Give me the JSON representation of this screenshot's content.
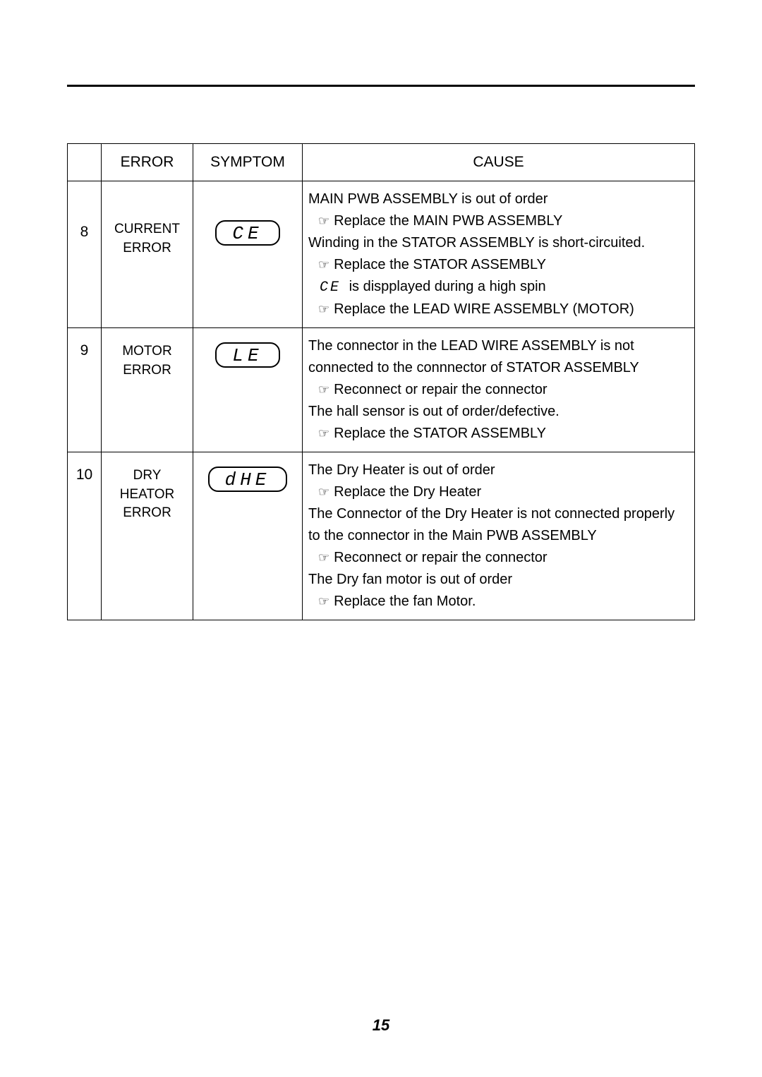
{
  "page_number": "15",
  "headers": {
    "error": "ERROR",
    "symptom": "SYMPTOM",
    "cause": "CAUSE"
  },
  "rows": [
    {
      "num": "8",
      "error_lines": [
        "CURRENT",
        "ERROR"
      ],
      "symptom_code": "CE",
      "cause_lines": [
        {
          "t": "MAIN PWB ASSEMBLY is out of order",
          "a": false
        },
        {
          "t": "Replace the MAIN PWB ASSEMBLY",
          "a": true
        },
        {
          "t": "Winding in the STATOR ASSEMBLY is short-circuited.",
          "a": false
        },
        {
          "t": "Replace the STATOR ASSEMBLY",
          "a": true
        },
        {
          "t": "is dispplayed during a high spin",
          "a": false,
          "inline_code": "CE"
        },
        {
          "t": "Replace the LEAD WIRE ASSEMBLY (MOTOR)",
          "a": true
        }
      ]
    },
    {
      "num": "9",
      "error_lines": [
        "MOTOR",
        "ERROR"
      ],
      "symptom_code": "LE",
      "cause_lines": [
        {
          "t": "The connector in the LEAD WIRE ASSEMBLY is not connected to the connnector of STATOR ASSEMBLY",
          "a": false
        },
        {
          "t": "Reconnect or repair the connector",
          "a": true
        },
        {
          "t": "The hall sensor is out of order/defective.",
          "a": false
        },
        {
          "t": "Replace the STATOR ASSEMBLY",
          "a": true
        }
      ]
    },
    {
      "num": "10",
      "error_lines": [
        "DRY",
        "HEATOR",
        "ERROR"
      ],
      "symptom_code": "dHE",
      "cause_lines": [
        {
          "t": "The Dry Heater is out of order",
          "a": false
        },
        {
          "t": "Replace the Dry Heater",
          "a": true
        },
        {
          "t": "The Connector of the Dry Heater is not connected properly to the connector in the Main PWB ASSEMBLY",
          "a": false
        },
        {
          "t": "Reconnect or repair the connector",
          "a": true
        },
        {
          "t": "The Dry fan motor is out of order",
          "a": false
        },
        {
          "t": "Replace the fan Motor.",
          "a": true
        }
      ]
    }
  ],
  "colors": {
    "rule": "#000000",
    "text": "#000000",
    "background": "#ffffff"
  }
}
